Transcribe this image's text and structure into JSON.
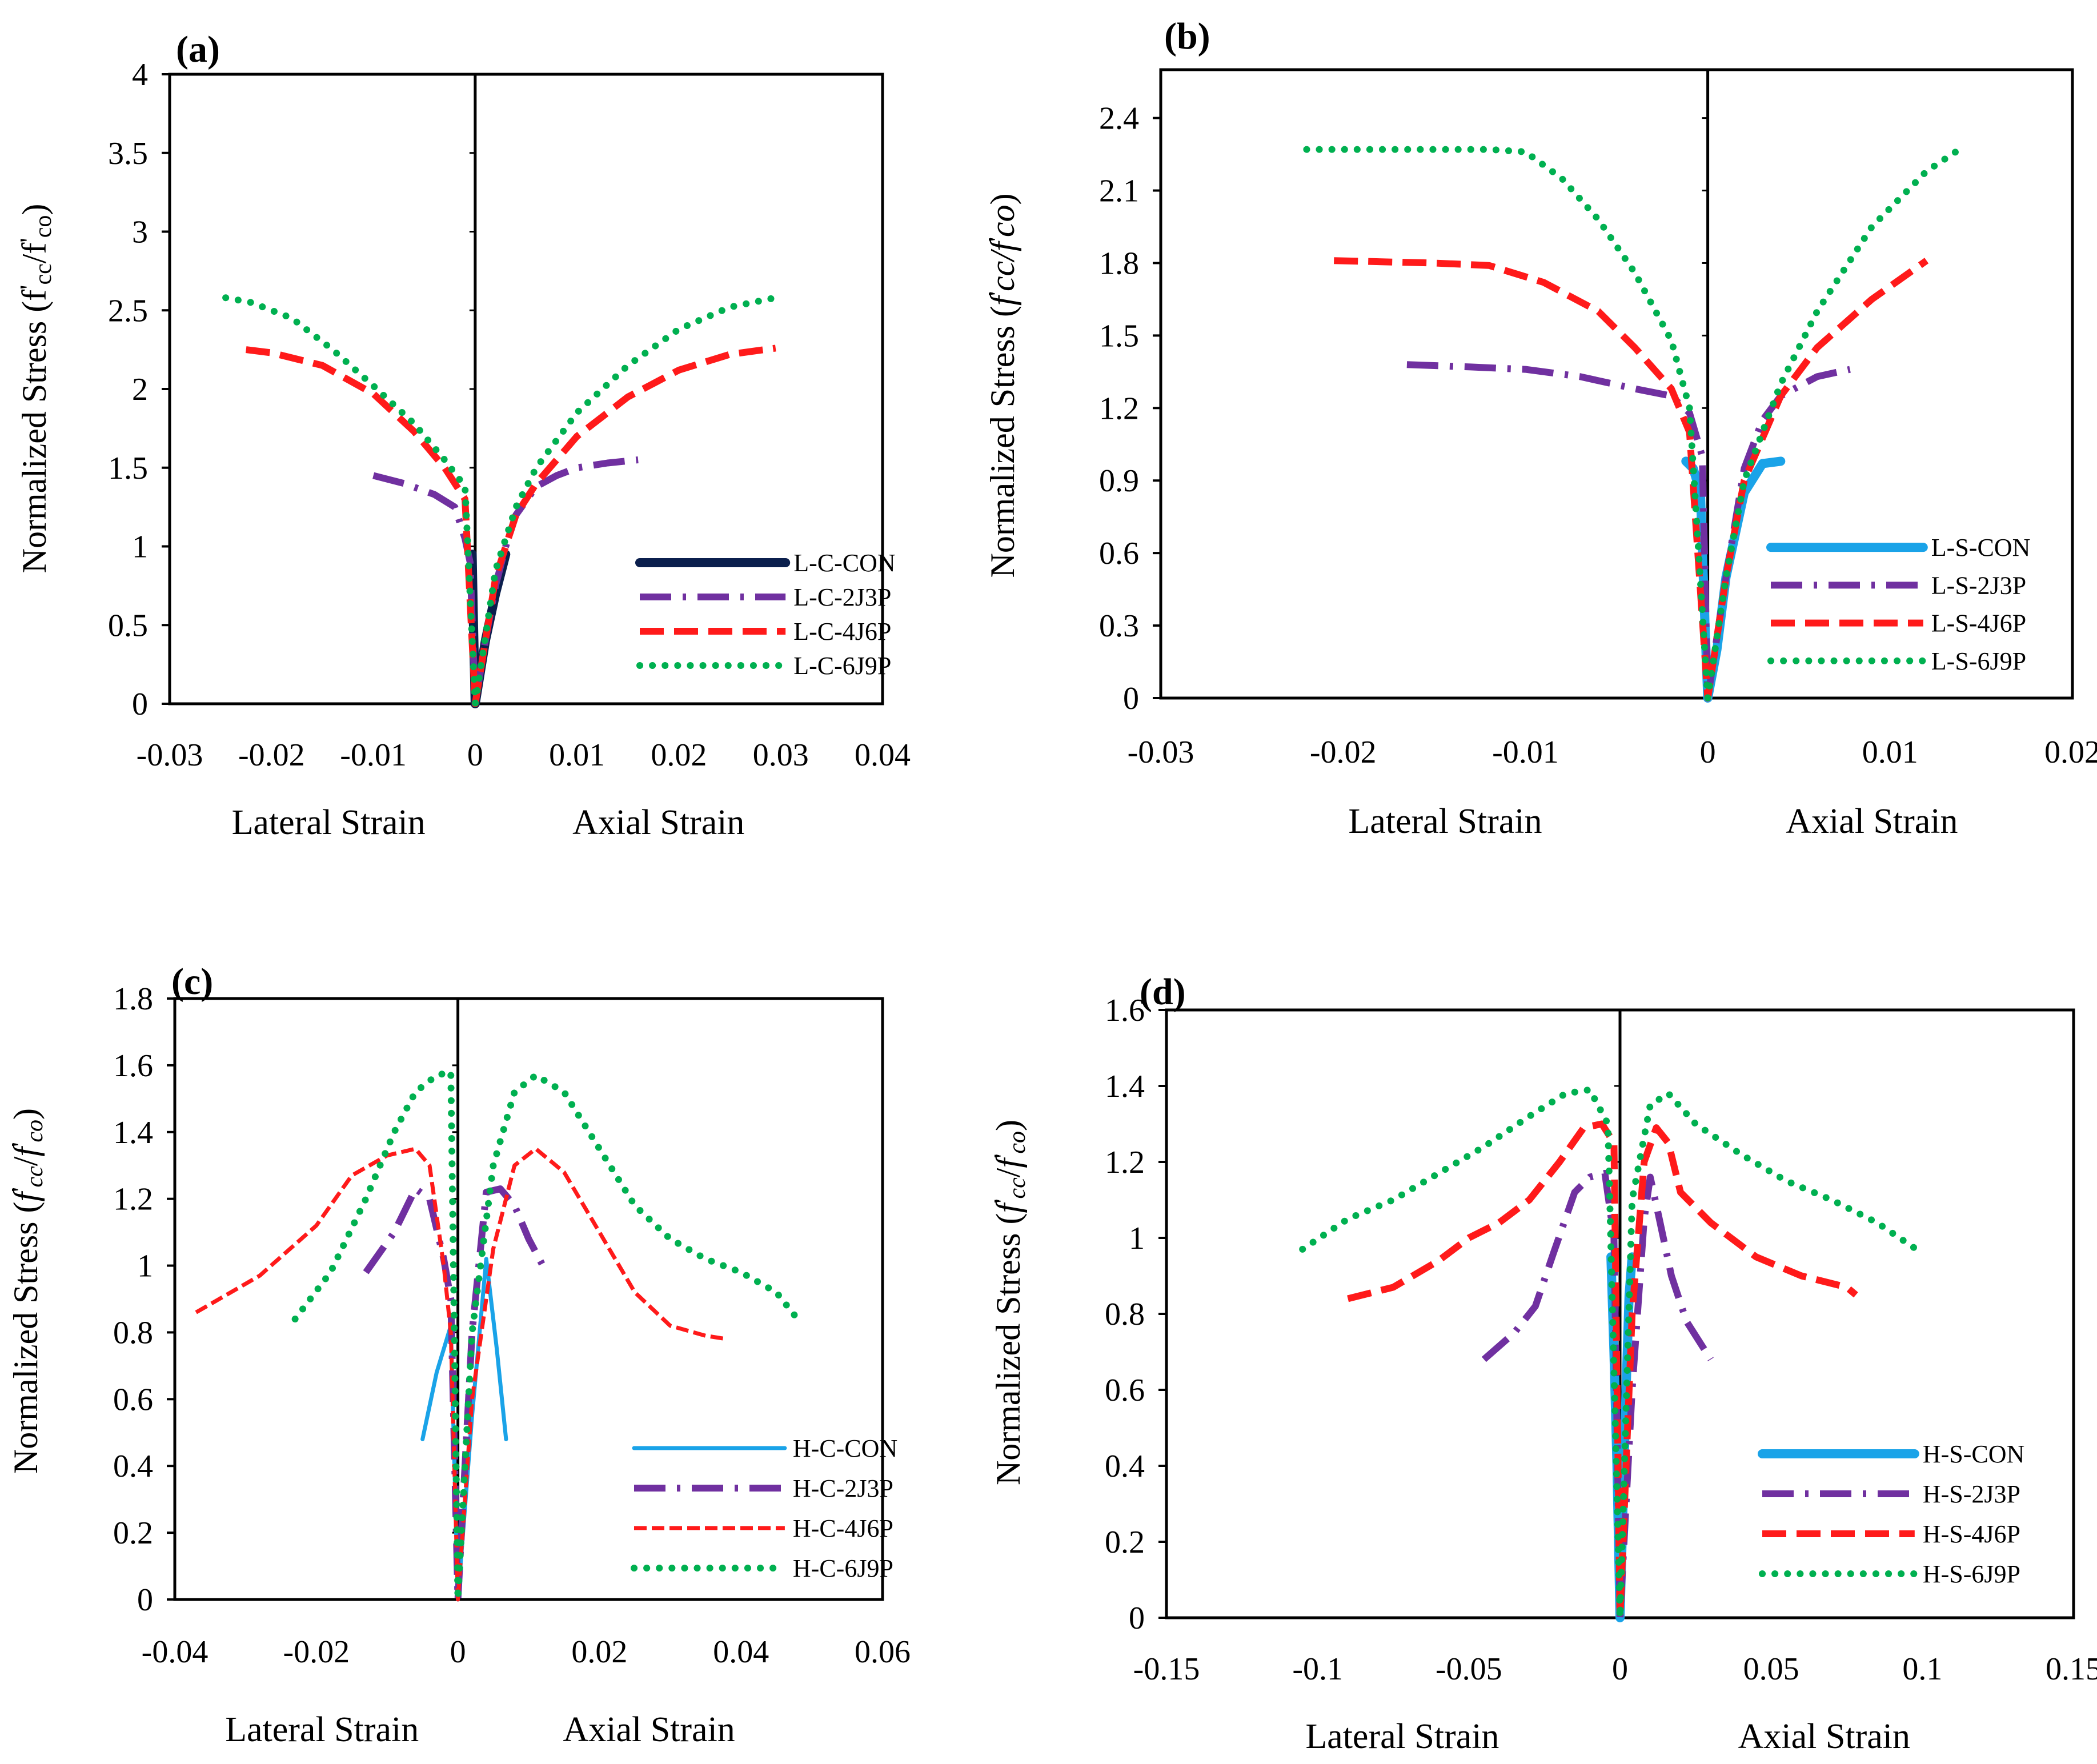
{
  "chart_data": [
    {
      "type": "line",
      "panel_label": "(a)",
      "ylabel_parts": [
        {
          "t": "Normalized Stress (f"
        },
        {
          "t": "'",
          "sup": true
        },
        {
          "t": "cc",
          "sub": true
        },
        {
          "t": "/f"
        },
        {
          "t": "'",
          "sup": true
        },
        {
          "t": "co",
          "sub": true
        },
        {
          "t": ")"
        }
      ],
      "xlabel_left": "Lateral Strain",
      "xlabel_right": "Axial Strain",
      "xlim": [
        -0.03,
        0.04
      ],
      "ylim": [
        0,
        4
      ],
      "x_ticks": [
        -0.03,
        -0.02,
        -0.01,
        0,
        0.01,
        0.02,
        0.03,
        0.04
      ],
      "x_tick_labels": [
        "-0.03",
        "-0.02",
        "-0.01",
        "0",
        "0.01",
        "0.02",
        "0.03",
        "0.04"
      ],
      "y_ticks": [
        0,
        0.5,
        1,
        1.5,
        2,
        2.5,
        3,
        3.5,
        4
      ],
      "y_tick_labels": [
        "0",
        "0.5",
        "1",
        "1.5",
        "2",
        "2.5",
        "3",
        "3.5",
        "4"
      ],
      "legend_position": "bottom-right",
      "series": [
        {
          "name": "L-C-CON",
          "color": "#0b1f4d",
          "style": "solid-thick",
          "x": [
            -0.0003,
            -0.0002,
            -0.0001,
            0,
            0.0005,
            0.001,
            0.002,
            0.003
          ],
          "y": [
            0.95,
            0.6,
            0.3,
            0,
            0.2,
            0.4,
            0.7,
            0.95
          ]
        },
        {
          "name": "L-C-2J3P",
          "color": "#7030a0",
          "style": "dashdot",
          "x": [
            -0.01,
            -0.007,
            -0.004,
            -0.002,
            -0.001,
            -0.0005,
            0,
            0.001,
            0.002,
            0.003,
            0.004,
            0.006,
            0.008,
            0.01,
            0.013,
            0.016
          ],
          "y": [
            1.45,
            1.4,
            1.33,
            1.25,
            1.05,
            0.9,
            0,
            0.4,
            0.75,
            1.0,
            1.2,
            1.38,
            1.45,
            1.5,
            1.53,
            1.55
          ]
        },
        {
          "name": "L-C-4J6P",
          "color": "#ff1a1a",
          "style": "dashed",
          "x": [
            -0.0225,
            -0.02,
            -0.015,
            -0.01,
            -0.006,
            -0.003,
            -0.001,
            0,
            0.002,
            0.004,
            0.006,
            0.01,
            0.015,
            0.02,
            0.025,
            0.0295
          ],
          "y": [
            2.25,
            2.23,
            2.15,
            1.97,
            1.73,
            1.5,
            1.3,
            0,
            0.8,
            1.2,
            1.4,
            1.7,
            1.95,
            2.12,
            2.22,
            2.26
          ]
        },
        {
          "name": "L-C-6J9P",
          "color": "#00b050",
          "style": "dotted",
          "x": [
            -0.0245,
            -0.022,
            -0.018,
            -0.014,
            -0.01,
            -0.006,
            -0.003,
            -0.001,
            0,
            0.002,
            0.004,
            0.006,
            0.01,
            0.015,
            0.02,
            0.025,
            0.0295
          ],
          "y": [
            2.58,
            2.55,
            2.45,
            2.25,
            2.02,
            1.78,
            1.55,
            1.38,
            0,
            0.85,
            1.25,
            1.5,
            1.85,
            2.15,
            2.38,
            2.52,
            2.58
          ]
        }
      ]
    },
    {
      "type": "line",
      "panel_label": "(b)",
      "ylabel_parts": [
        {
          "t": "Normalized  Stress ("
        },
        {
          "t": "f",
          "it": true
        },
        {
          "t": "'",
          "sup": true
        },
        {
          "t": "cc/f",
          "it": true
        },
        {
          "t": "'",
          "sup": true
        },
        {
          "t": "co",
          "it": true
        },
        {
          "t": ")"
        }
      ],
      "xlabel_left": "Lateral Strain",
      "xlabel_right": "Axial Strain",
      "xlim": [
        -0.03,
        0.02
      ],
      "ylim": [
        0,
        2.6
      ],
      "x_ticks": [
        -0.03,
        -0.02,
        -0.01,
        0,
        0.01,
        0.02
      ],
      "x_tick_labels": [
        "-0.03",
        "-0.02",
        "-0.01",
        "0",
        "0.01",
        "0.02"
      ],
      "y_ticks": [
        0,
        0.3,
        0.6,
        0.9,
        1.2,
        1.5,
        1.8,
        2.1,
        2.4
      ],
      "y_tick_labels": [
        "0",
        "0.3",
        "0.6",
        "0.9",
        "1.2",
        "1.5",
        "1.8",
        "2.1",
        "2.4"
      ],
      "legend_position": "bottom-right",
      "series": [
        {
          "name": "L-S-CON",
          "color": "#1aa3e8",
          "style": "solid-thick",
          "x": [
            -0.0012,
            -0.0008,
            -0.0004,
            -0.0002,
            0,
            0.0005,
            0.001,
            0.002,
            0.003,
            0.004
          ],
          "y": [
            0.98,
            0.95,
            0.85,
            0.4,
            0,
            0.2,
            0.5,
            0.85,
            0.97,
            0.98
          ]
        },
        {
          "name": "L-S-2J3P",
          "color": "#7030a0",
          "style": "dashdot",
          "x": [
            -0.0165,
            -0.013,
            -0.01,
            -0.007,
            -0.004,
            -0.002,
            -0.001,
            -0.0003,
            0,
            0.001,
            0.002,
            0.003,
            0.004,
            0.006,
            0.0078
          ],
          "y": [
            1.38,
            1.37,
            1.36,
            1.33,
            1.28,
            1.25,
            1.18,
            1.0,
            0,
            0.5,
            0.95,
            1.15,
            1.25,
            1.33,
            1.36
          ]
        },
        {
          "name": "L-S-4J6P",
          "color": "#ff1a1a",
          "style": "dashed",
          "x": [
            -0.0205,
            -0.015,
            -0.012,
            -0.009,
            -0.006,
            -0.004,
            -0.002,
            -0.001,
            0,
            0.001,
            0.002,
            0.004,
            0.006,
            0.009,
            0.012
          ],
          "y": [
            1.81,
            1.8,
            1.79,
            1.72,
            1.6,
            1.45,
            1.28,
            1.1,
            0,
            0.5,
            0.9,
            1.25,
            1.45,
            1.65,
            1.81
          ]
        },
        {
          "name": "L-S-6J9P",
          "color": "#00b050",
          "style": "dotted",
          "x": [
            -0.022,
            -0.016,
            -0.012,
            -0.01,
            -0.008,
            -0.006,
            -0.004,
            -0.002,
            -0.001,
            0,
            0.001,
            0.002,
            0.004,
            0.006,
            0.009,
            0.012,
            0.0138
          ],
          "y": [
            2.27,
            2.27,
            2.27,
            2.26,
            2.15,
            1.98,
            1.76,
            1.48,
            1.2,
            0,
            0.5,
            0.9,
            1.3,
            1.6,
            1.95,
            2.18,
            2.27
          ]
        }
      ]
    },
    {
      "type": "line",
      "panel_label": "(c)",
      "ylabel_parts": [
        {
          "t": "Normalized Stress ("
        },
        {
          "t": "f",
          "it": true
        },
        {
          "t": "'",
          "sup": true
        },
        {
          "t": "cc",
          "sub": true,
          "it": true
        },
        {
          "t": "/"
        },
        {
          "t": "f",
          "it": true
        },
        {
          "t": "'",
          "sup": true
        },
        {
          "t": "co",
          "sub": true,
          "it": true
        },
        {
          "t": ")"
        }
      ],
      "xlabel_left": "Lateral Strain",
      "xlabel_right": "Axial Strain",
      "xlim": [
        -0.04,
        0.06
      ],
      "ylim": [
        0,
        1.8
      ],
      "x_ticks": [
        -0.04,
        -0.02,
        0,
        0.02,
        0.04,
        0.06
      ],
      "x_tick_labels": [
        "-0.04",
        "-0.02",
        "0",
        "0.02",
        "0.04",
        "0.06"
      ],
      "y_ticks": [
        0,
        0.2,
        0.4,
        0.6,
        0.8,
        1,
        1.2,
        1.4,
        1.6,
        1.8
      ],
      "y_tick_labels": [
        "0",
        "0.2",
        "0.4",
        "0.6",
        "0.8",
        "1",
        "1.2",
        "1.4",
        "1.6",
        "1.8"
      ],
      "legend_position": "bottom-right",
      "series": [
        {
          "name": "H-C-CON",
          "color": "#1aa3e8",
          "style": "solid-thin",
          "x": [
            -0.005,
            -0.003,
            -0.001,
            0,
            0.002,
            0.004,
            0.0055,
            0.0068
          ],
          "y": [
            0.48,
            0.68,
            0.82,
            0,
            0.55,
            1.02,
            0.75,
            0.48
          ]
        },
        {
          "name": "H-C-2J3P",
          "color": "#7030a0",
          "style": "dashdot",
          "x": [
            -0.013,
            -0.009,
            -0.006,
            -0.004,
            -0.002,
            -0.001,
            0,
            0.002,
            0.004,
            0.006,
            0.008,
            0.01,
            0.012
          ],
          "y": [
            0.98,
            1.1,
            1.23,
            1.2,
            1.02,
            0.9,
            0,
            0.8,
            1.22,
            1.23,
            1.18,
            1.08,
            1.0
          ]
        },
        {
          "name": "H-C-4J6P",
          "color": "#ff1a1a",
          "style": "dashed-fine",
          "x": [
            -0.037,
            -0.028,
            -0.02,
            -0.015,
            -0.01,
            -0.006,
            -0.004,
            -0.002,
            -0.001,
            0,
            0.002,
            0.005,
            0.008,
            0.011,
            0.015,
            0.02,
            0.025,
            0.03,
            0.035,
            0.038
          ],
          "y": [
            0.86,
            0.97,
            1.12,
            1.27,
            1.33,
            1.35,
            1.3,
            1.0,
            0.8,
            0,
            0.6,
            1.05,
            1.3,
            1.35,
            1.28,
            1.1,
            0.92,
            0.82,
            0.79,
            0.78
          ]
        },
        {
          "name": "H-C-6J9P",
          "color": "#00b050",
          "style": "dotted",
          "x": [
            -0.023,
            -0.018,
            -0.013,
            -0.009,
            -0.006,
            -0.003,
            -0.001,
            0,
            0.002,
            0.005,
            0.008,
            0.011,
            0.015,
            0.02,
            0.025,
            0.03,
            0.035,
            0.04,
            0.045,
            0.048
          ],
          "y": [
            0.84,
            0.98,
            1.2,
            1.4,
            1.52,
            1.57,
            1.58,
            0,
            0.8,
            1.3,
            1.52,
            1.57,
            1.52,
            1.35,
            1.18,
            1.08,
            1.02,
            0.98,
            0.92,
            0.84
          ]
        }
      ]
    },
    {
      "type": "line",
      "panel_label": "(d)",
      "ylabel_parts": [
        {
          "t": "Normalized Stress ("
        },
        {
          "t": "f",
          "it": true
        },
        {
          "t": "'",
          "sup": true
        },
        {
          "t": "cc",
          "sub": true,
          "it": true
        },
        {
          "t": "/"
        },
        {
          "t": "f",
          "it": true
        },
        {
          "t": "'",
          "sup": true
        },
        {
          "t": "co",
          "sub": true,
          "it": true
        },
        {
          "t": ")"
        }
      ],
      "xlabel_left": "Lateral Strain",
      "xlabel_right": "Axial Strain",
      "xlim": [
        -0.15,
        0.15
      ],
      "ylim": [
        0,
        1.6
      ],
      "x_ticks": [
        -0.15,
        -0.1,
        -0.05,
        0,
        0.05,
        0.1,
        0.15
      ],
      "x_tick_labels": [
        "-0.15",
        "-0.1",
        "-0.05",
        "0",
        "0.05",
        "0.1",
        "0.15"
      ],
      "y_ticks": [
        0,
        0.2,
        0.4,
        0.6,
        0.8,
        1,
        1.2,
        1.4,
        1.6
      ],
      "y_tick_labels": [
        "0",
        "0.2",
        "0.4",
        "0.6",
        "0.8",
        "1",
        "1.2",
        "1.4",
        "1.6"
      ],
      "legend_position": "bottom-right",
      "series": [
        {
          "name": "H-S-CON",
          "color": "#1aa3e8",
          "style": "solid-thick",
          "x": [
            -0.003,
            -0.002,
            -0.001,
            0,
            0.001,
            0.002,
            0.003,
            0.004
          ],
          "y": [
            0.95,
            0.7,
            0.4,
            0,
            0.3,
            0.6,
            0.85,
            0.95
          ]
        },
        {
          "name": "H-S-2J3P",
          "color": "#7030a0",
          "style": "dashdot",
          "x": [
            -0.045,
            -0.035,
            -0.028,
            -0.022,
            -0.015,
            -0.01,
            -0.005,
            -0.002,
            0,
            0.004,
            0.008,
            0.01,
            0.013,
            0.017,
            0.022,
            0.03
          ],
          "y": [
            0.68,
            0.75,
            0.82,
            0.96,
            1.12,
            1.16,
            1.17,
            1.0,
            0,
            0.6,
            1.05,
            1.16,
            1.05,
            0.9,
            0.78,
            0.68
          ]
        },
        {
          "name": "H-S-4J6P",
          "color": "#ff1a1a",
          "style": "dashed",
          "x": [
            -0.09,
            -0.075,
            -0.06,
            -0.05,
            -0.04,
            -0.03,
            -0.02,
            -0.012,
            -0.006,
            -0.002,
            0,
            0.004,
            0.008,
            0.012,
            0.016,
            0.02,
            0.03,
            0.045,
            0.06,
            0.075,
            0.078
          ],
          "y": [
            0.84,
            0.87,
            0.94,
            1.0,
            1.04,
            1.1,
            1.2,
            1.29,
            1.3,
            1.25,
            0,
            0.8,
            1.2,
            1.29,
            1.25,
            1.12,
            1.04,
            0.95,
            0.9,
            0.87,
            0.85
          ]
        },
        {
          "name": "H-S-6J9P",
          "color": "#00b050",
          "style": "dotted",
          "x": [
            -0.105,
            -0.09,
            -0.075,
            -0.06,
            -0.045,
            -0.03,
            -0.018,
            -0.01,
            -0.004,
            0,
            0.004,
            0.01,
            0.016,
            0.025,
            0.04,
            0.055,
            0.07,
            0.085,
            0.098
          ],
          "y": [
            0.97,
            1.05,
            1.1,
            1.17,
            1.24,
            1.32,
            1.38,
            1.39,
            1.3,
            0,
            1.1,
            1.35,
            1.38,
            1.3,
            1.22,
            1.15,
            1.1,
            1.04,
            0.97
          ]
        }
      ]
    }
  ]
}
